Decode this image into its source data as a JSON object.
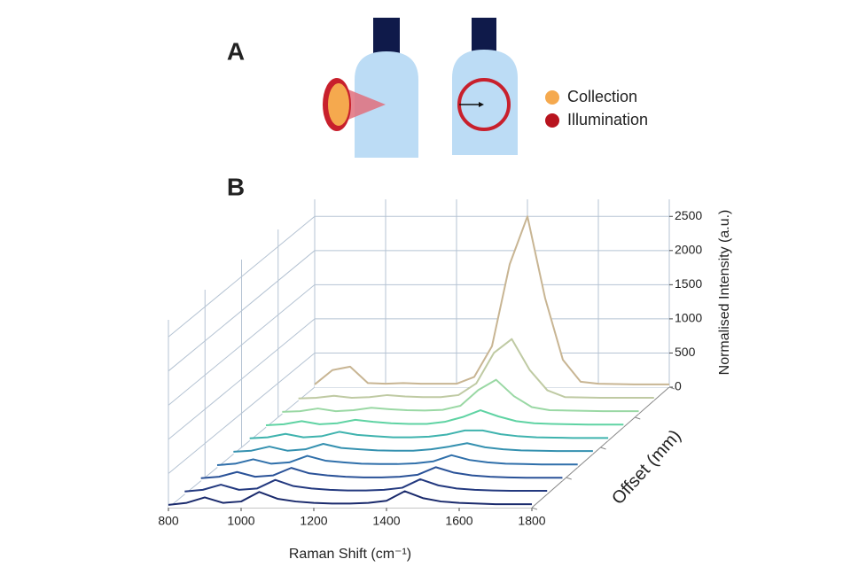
{
  "diagram": {
    "panel_a": "A",
    "panel_b": "B",
    "legend": [
      {
        "label": "Collection",
        "color": "#f5a94e"
      },
      {
        "label": "Illumination",
        "color": "#b8141e"
      }
    ]
  },
  "chart_data": {
    "type": "waterfall",
    "xlabel": "Raman Shift (cm⁻¹)",
    "zlabel": "Normalised Intensity (a.u.)",
    "depth_label": "Offset (mm)",
    "x": [
      800,
      850,
      900,
      950,
      1000,
      1050,
      1100,
      1150,
      1200,
      1250,
      1300,
      1350,
      1400,
      1450,
      1500,
      1550,
      1600,
      1650,
      1700,
      1750,
      1800
    ],
    "xlim": [
      800,
      1800
    ],
    "xticks": [
      800,
      1000,
      1200,
      1400,
      1600,
      1800
    ],
    "zlim": [
      0,
      2750
    ],
    "zticks": [
      0,
      500,
      1000,
      1500,
      2000,
      2500
    ],
    "grid": true,
    "series": [
      {
        "color": "#1a2a6c",
        "values": [
          40,
          70,
          150,
          70,
          90,
          230,
          130,
          90,
          70,
          60,
          60,
          70,
          100,
          240,
          140,
          90,
          70,
          60,
          50,
          50,
          50
        ]
      },
      {
        "color": "#23397f",
        "values": [
          40,
          65,
          140,
          65,
          85,
          210,
          120,
          85,
          65,
          55,
          55,
          65,
          95,
          220,
          130,
          85,
          65,
          55,
          50,
          50,
          50
        ]
      },
      {
        "color": "#2a5298",
        "values": [
          40,
          60,
          130,
          60,
          80,
          190,
          110,
          80,
          60,
          50,
          50,
          60,
          90,
          200,
          120,
          80,
          60,
          50,
          45,
          45,
          45
        ]
      },
      {
        "color": "#2f6faa",
        "values": [
          35,
          55,
          120,
          55,
          75,
          170,
          100,
          75,
          55,
          50,
          50,
          60,
          90,
          180,
          110,
          75,
          55,
          50,
          45,
          45,
          45
        ]
      },
      {
        "color": "#3591b0",
        "values": [
          35,
          50,
          110,
          50,
          70,
          150,
          90,
          70,
          55,
          50,
          50,
          70,
          110,
          160,
          100,
          70,
          55,
          50,
          45,
          45,
          45
        ]
      },
      {
        "color": "#3fb3ae",
        "values": [
          35,
          50,
          100,
          50,
          65,
          130,
          85,
          65,
          50,
          50,
          60,
          90,
          150,
          150,
          95,
          65,
          50,
          45,
          40,
          40,
          40
        ]
      },
      {
        "color": "#5fd3a3",
        "values": [
          30,
          45,
          90,
          45,
          60,
          110,
          80,
          60,
          50,
          50,
          80,
          150,
          250,
          160,
          90,
          60,
          50,
          45,
          40,
          40,
          40
        ]
      },
      {
        "color": "#9ad8a4",
        "values": [
          30,
          40,
          80,
          40,
          55,
          90,
          70,
          55,
          50,
          60,
          120,
          350,
          500,
          260,
          100,
          55,
          50,
          45,
          40,
          40,
          40
        ]
      },
      {
        "color": "#bfcaa3",
        "values": [
          30,
          40,
          70,
          40,
          50,
          80,
          60,
          50,
          50,
          80,
          250,
          700,
          900,
          450,
          150,
          50,
          45,
          40,
          40,
          40,
          40
        ]
      },
      {
        "color": "#c8b593",
        "values": [
          40,
          250,
          300,
          60,
          50,
          60,
          50,
          50,
          50,
          150,
          600,
          1800,
          2500,
          1300,
          400,
          80,
          50,
          45,
          40,
          40,
          40
        ]
      }
    ]
  }
}
